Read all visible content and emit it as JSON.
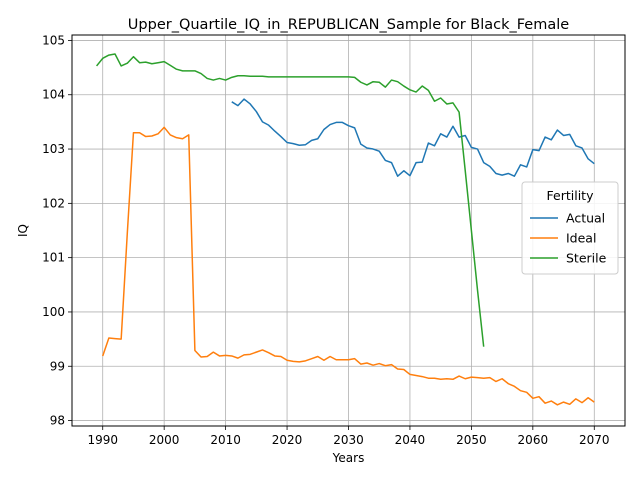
{
  "chart_data": {
    "type": "line",
    "title": "Upper_Quartile_IQ_in_REPUBLICAN_Sample for Black_Female",
    "xlabel": "Years",
    "ylabel": "IQ",
    "xlim": [
      1985,
      2075
    ],
    "ylim": [
      97.9,
      105.1
    ],
    "xticks": [
      1990,
      2000,
      2010,
      2020,
      2030,
      2040,
      2050,
      2060,
      2070
    ],
    "yticks": [
      98,
      99,
      100,
      101,
      102,
      103,
      104,
      105
    ],
    "grid": true,
    "legend": {
      "title": "Fertility",
      "placement": "center-right"
    },
    "series": [
      {
        "name": "Actual",
        "color": "#1f77b4",
        "x": [
          2011,
          2012,
          2013,
          2014,
          2015,
          2016,
          2017,
          2018,
          2019,
          2020,
          2021,
          2022,
          2023,
          2024,
          2025,
          2026,
          2027,
          2028,
          2029,
          2030,
          2031,
          2032,
          2033,
          2034,
          2035,
          2036,
          2037,
          2038,
          2039,
          2040,
          2041,
          2042,
          2043,
          2044,
          2045,
          2046,
          2047,
          2048,
          2049,
          2050,
          2051,
          2052,
          2053,
          2054,
          2055,
          2056,
          2057,
          2058,
          2059,
          2060,
          2061,
          2062,
          2063,
          2064,
          2065,
          2066,
          2067,
          2068,
          2069,
          2070
        ],
        "y": [
          103.87,
          103.8,
          103.92,
          103.83,
          103.69,
          103.5,
          103.44,
          103.33,
          103.23,
          103.12,
          103.1,
          103.07,
          103.08,
          103.16,
          103.19,
          103.36,
          103.45,
          103.49,
          103.49,
          103.43,
          103.39,
          103.09,
          103.02,
          103.0,
          102.96,
          102.79,
          102.75,
          102.5,
          102.6,
          102.51,
          102.75,
          102.76,
          103.11,
          103.06,
          103.28,
          103.22,
          103.42,
          103.22,
          103.25,
          103.03,
          103.0,
          102.75,
          102.68,
          102.55,
          102.52,
          102.55,
          102.5,
          102.71,
          102.67,
          102.99,
          102.97,
          103.22,
          103.17,
          103.35,
          103.25,
          103.27,
          103.06,
          103.02,
          102.82,
          102.73
        ]
      },
      {
        "name": "Ideal",
        "color": "#ff7f0e",
        "x": [
          1990,
          1991,
          1992,
          1993,
          1994,
          1995,
          1996,
          1997,
          1998,
          1999,
          2000,
          2001,
          2002,
          2003,
          2004,
          2005,
          2006,
          2007,
          2008,
          2009,
          2010,
          2011,
          2012,
          2013,
          2014,
          2015,
          2016,
          2017,
          2018,
          2019,
          2020,
          2021,
          2022,
          2023,
          2024,
          2025,
          2026,
          2027,
          2028,
          2029,
          2030,
          2031,
          2032,
          2033,
          2034,
          2035,
          2036,
          2037,
          2038,
          2039,
          2040,
          2041,
          2042,
          2043,
          2044,
          2045,
          2046,
          2047,
          2048,
          2049,
          2050,
          2051,
          2052,
          2053,
          2054,
          2055,
          2056,
          2057,
          2058,
          2059,
          2060,
          2061,
          2062,
          2063,
          2064,
          2065,
          2066,
          2067,
          2068,
          2069,
          2070
        ],
        "y": [
          99.19,
          99.52,
          99.51,
          99.5,
          101.45,
          103.3,
          103.3,
          103.23,
          103.24,
          103.28,
          103.4,
          103.26,
          103.21,
          103.19,
          103.26,
          99.29,
          99.17,
          99.18,
          99.26,
          99.19,
          99.2,
          99.19,
          99.15,
          99.21,
          99.22,
          99.26,
          99.3,
          99.25,
          99.19,
          99.18,
          99.11,
          99.09,
          99.08,
          99.1,
          99.14,
          99.18,
          99.11,
          99.18,
          99.12,
          99.12,
          99.12,
          99.14,
          99.04,
          99.06,
          99.02,
          99.05,
          99.01,
          99.03,
          98.95,
          98.94,
          98.85,
          98.83,
          98.81,
          98.78,
          98.78,
          98.76,
          98.77,
          98.76,
          98.82,
          98.77,
          98.8,
          98.79,
          98.78,
          98.79,
          98.72,
          98.77,
          98.68,
          98.63,
          98.55,
          98.52,
          98.41,
          98.44,
          98.32,
          98.36,
          98.29,
          98.34,
          98.3,
          98.4,
          98.33,
          98.42,
          98.34
        ]
      },
      {
        "name": "Sterile",
        "color": "#2ca02c",
        "x": [
          1989,
          1990,
          1991,
          1992,
          1993,
          1994,
          1995,
          1996,
          1997,
          1998,
          1999,
          2000,
          2001,
          2002,
          2003,
          2004,
          2005,
          2006,
          2007,
          2008,
          2009,
          2010,
          2011,
          2012,
          2013,
          2014,
          2015,
          2016,
          2017,
          2018,
          2019,
          2020,
          2021,
          2022,
          2023,
          2024,
          2025,
          2026,
          2027,
          2028,
          2029,
          2030,
          2031,
          2032,
          2033,
          2034,
          2035,
          2036,
          2037,
          2038,
          2039,
          2040,
          2041,
          2042,
          2043,
          2044,
          2045,
          2046,
          2047,
          2048,
          2049,
          2050,
          2051,
          2052
        ],
        "y": [
          104.53,
          104.67,
          104.73,
          104.75,
          104.53,
          104.58,
          104.7,
          104.59,
          104.6,
          104.57,
          104.59,
          104.61,
          104.54,
          104.47,
          104.44,
          104.44,
          104.44,
          104.39,
          104.3,
          104.27,
          104.3,
          104.27,
          104.32,
          104.35,
          104.35,
          104.34,
          104.34,
          104.34,
          104.33,
          104.33,
          104.33,
          104.33,
          104.33,
          104.33,
          104.33,
          104.33,
          104.33,
          104.33,
          104.33,
          104.33,
          104.33,
          104.33,
          104.32,
          104.23,
          104.18,
          104.24,
          104.23,
          104.14,
          104.27,
          104.24,
          104.16,
          104.09,
          104.05,
          104.16,
          104.08,
          103.88,
          103.94,
          103.83,
          103.85,
          103.68,
          102.6,
          101.5,
          100.4,
          99.36
        ]
      }
    ]
  }
}
